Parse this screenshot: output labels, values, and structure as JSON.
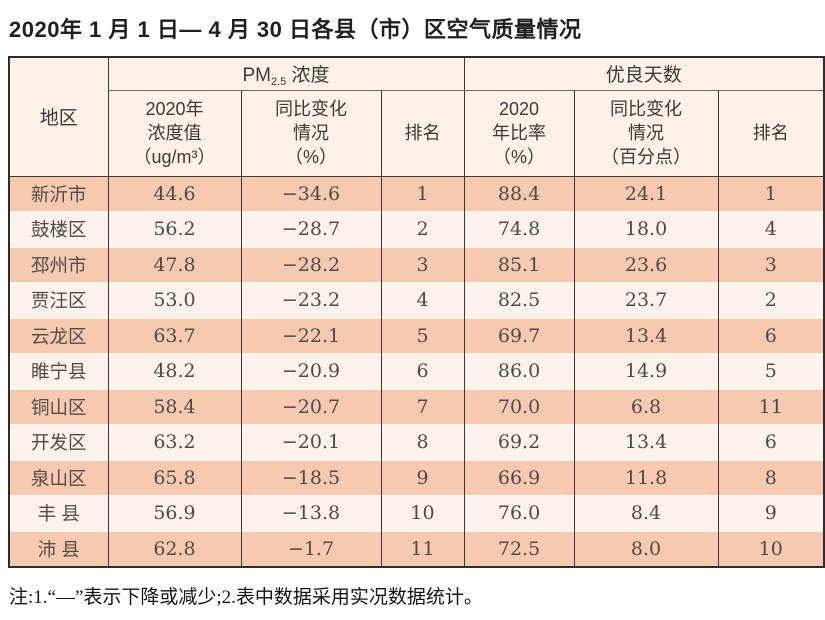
{
  "title": "2020年 1 月 1 日— 4 月 30 日各县（市）区空气质量情况",
  "table": {
    "header": {
      "region": "地区",
      "pm_group": {
        "main": "PM",
        "sub": "2.5",
        "suffix": " 浓度"
      },
      "good_days_group": "优良天数",
      "sub_headers": [
        "2020年\n浓度值\n（ug/m³）",
        "同比变化\n情况\n（%）",
        "排名",
        "2020\n年比率\n（%）",
        "同比变化\n情况\n（百分点）",
        "排名"
      ]
    },
    "rows": [
      [
        "新沂市",
        "44.6",
        "−34.6",
        "1",
        "88.4",
        "24.1",
        "1"
      ],
      [
        "鼓楼区",
        "56.2",
        "−28.7",
        "2",
        "74.8",
        "18.0",
        "4"
      ],
      [
        "邳州市",
        "47.8",
        "−28.2",
        "3",
        "85.1",
        "23.6",
        "3"
      ],
      [
        "贾汪区",
        "53.0",
        "−23.2",
        "4",
        "82.5",
        "23.7",
        "2"
      ],
      [
        "云龙区",
        "63.7",
        "−22.1",
        "5",
        "69.7",
        "13.4",
        "6"
      ],
      [
        "睢宁县",
        "48.2",
        "−20.9",
        "6",
        "86.0",
        "14.9",
        "5"
      ],
      [
        "铜山区",
        "58.4",
        "−20.7",
        "7",
        "70.0",
        "6.8",
        "11"
      ],
      [
        "开发区",
        "63.2",
        "−20.1",
        "8",
        "69.2",
        "13.4",
        "6"
      ],
      [
        "泉山区",
        "65.8",
        "−18.5",
        "9",
        "66.9",
        "11.8",
        "8"
      ],
      [
        "丰 县",
        "56.9",
        "−13.8",
        "10",
        "76.0",
        "8.4",
        "9"
      ],
      [
        "沛 县",
        "62.8",
        "−1.7",
        "11",
        "72.5",
        "8.0",
        "10"
      ]
    ]
  },
  "note": "注:1.“—”表示下降或减少;2.表中数据采用实况数据统计。",
  "colors": {
    "band_odd": "#f8c9b1",
    "band_even": "#fdf3ec",
    "header_bg": "#fdf1e8",
    "border_dark": "#3a3634",
    "text": "#4e4a47"
  }
}
